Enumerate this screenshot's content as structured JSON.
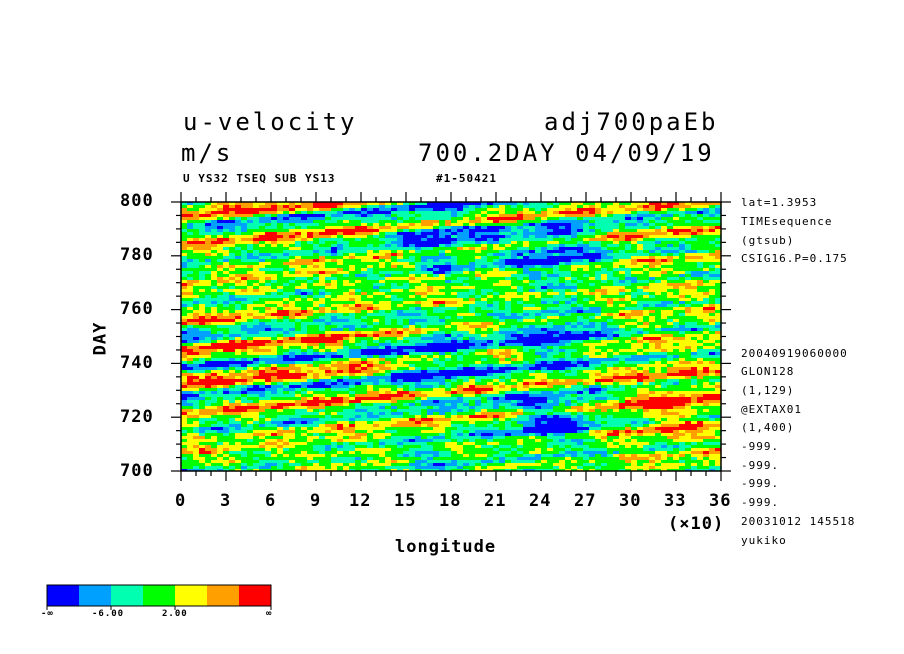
{
  "header": {
    "variable": "u-velocity",
    "units": "m/s",
    "dataset": "adj700paEb",
    "timestamp": "700.2DAY 04/09/19",
    "subtitle_left": "U YS32 TSEQ SUB YS13",
    "subtitle_right": "#1-50421"
  },
  "side_info_top": [
    "lat=1.3953",
    "TIMEsequence",
    "(gtsub)",
    "CSIG16.P=0.175"
  ],
  "side_info_bottom": [
    "20040919060000",
    "GLON128",
    "(1,129)",
    "@EXTAX01",
    "(1,400)",
    "-999.",
    "-999.",
    "-999.",
    "-999.",
    "20031012 145518",
    "yukiko"
  ],
  "chart_data": {
    "type": "heatmap",
    "xlabel": "longitude",
    "ylabel": "DAY",
    "x_multiplier_label": "(×10)",
    "xlim": [
      0,
      36
    ],
    "ylim": [
      700,
      800
    ],
    "x_ticks": [
      "0",
      "3",
      "6",
      "9",
      "12",
      "15",
      "18",
      "21",
      "24",
      "27",
      "30",
      "33",
      "36"
    ],
    "y_ticks": [
      "700",
      "720",
      "740",
      "760",
      "780",
      "800"
    ],
    "colorbar": {
      "colors": [
        "#0000ff",
        "#00a0ff",
        "#00ffb0",
        "#00ff00",
        "#ffff00",
        "#ffa000",
        "#ff0000"
      ],
      "labels": [
        "-∞",
        "-6.00",
        "2.00",
        "∞"
      ]
    }
  }
}
